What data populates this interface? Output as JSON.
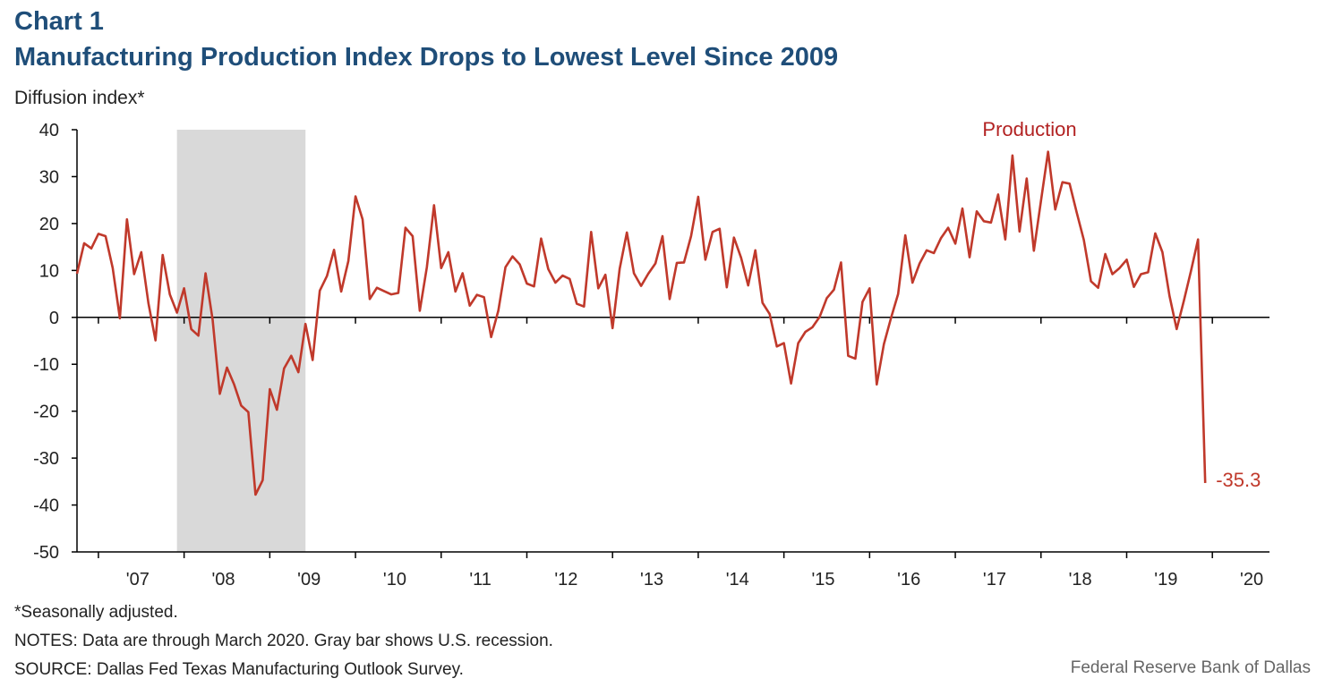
{
  "header": {
    "chart_label": "Chart 1",
    "title": "Manufacturing Production Index Drops to Lowest Level Since 2009",
    "y_unit": "Diffusion index*"
  },
  "footer": {
    "footnote": "*Seasonally adjusted.",
    "notes": "NOTES: Data are through March 2020. Gray bar shows U.S. recession.",
    "source": "SOURCE: Dallas Fed Texas Manufacturing Outlook Survey.",
    "credit": "Federal Reserve Bank of Dallas"
  },
  "chart_data": {
    "type": "line",
    "title": "Manufacturing Production Index Drops to Lowest Level Since 2009",
    "ylabel": "Diffusion index*",
    "ylim": [
      -50,
      40
    ],
    "yticks": [
      40,
      30,
      20,
      10,
      0,
      -10,
      -20,
      -30,
      -40,
      -50
    ],
    "x_range": [
      "2006-10",
      "2020-09"
    ],
    "xtick_labels": [
      "'07",
      "'08",
      "'09",
      "'10",
      "'11",
      "'12",
      "'13",
      "'14",
      "'15",
      "'16",
      "'17",
      "'18",
      "'19",
      "'20"
    ],
    "recession": {
      "start": "2007-12",
      "end": "2009-06",
      "color": "#d9d9d9"
    },
    "series": [
      {
        "name": "Production",
        "color": "#c0392b",
        "start": "2006-10",
        "end_label": "-35.3",
        "values": [
          9.3,
          15.8,
          14.7,
          17.8,
          17.3,
          10.5,
          -0.2,
          20.9,
          9.2,
          13.9,
          3.0,
          -4.9,
          13.3,
          4.9,
          1.0,
          6.2,
          -2.5,
          -3.9,
          9.4,
          -0.5,
          -16.3,
          -10.7,
          -14.3,
          -18.8,
          -20.2,
          -37.8,
          -34.7,
          -15.3,
          -19.7,
          -10.9,
          -8.2,
          -11.7,
          -1.4,
          -9.1,
          5.7,
          8.8,
          14.4,
          5.5,
          12.0,
          25.8,
          20.9,
          3.9,
          6.3,
          5.6,
          4.9,
          5.2,
          19.1,
          17.3,
          1.4,
          10.7,
          23.9,
          10.5,
          13.9,
          5.5,
          9.4,
          2.5,
          4.8,
          4.3,
          -4.2,
          1.4,
          10.7,
          13.0,
          11.3,
          7.2,
          6.6,
          16.8,
          10.3,
          7.4,
          8.9,
          8.2,
          2.9,
          2.3,
          18.2,
          6.2,
          9.1,
          -2.3,
          10.4,
          18.1,
          9.4,
          6.7,
          9.3,
          11.5,
          17.3,
          3.9,
          11.6,
          11.7,
          17.3,
          25.7,
          12.3,
          18.2,
          18.9,
          6.4,
          17.0,
          12.7,
          6.8,
          14.3,
          3.1,
          0.7,
          -6.2,
          -5.5,
          -14.1,
          -5.5,
          -3.1,
          -2.1,
          0.1,
          4.1,
          5.9,
          11.7,
          -8.2,
          -8.8,
          3.3,
          6.2,
          -14.3,
          -5.7,
          -0.1,
          5.0,
          17.5,
          7.4,
          11.5,
          14.3,
          13.7,
          16.9,
          19.1,
          15.7,
          23.2,
          12.8,
          22.6,
          20.5,
          20.2,
          26.2,
          16.6,
          34.5,
          18.3,
          29.6,
          14.2,
          24.9,
          35.3,
          23.0,
          28.8,
          28.5,
          22.4,
          16.5,
          7.7,
          6.3,
          13.5,
          9.2,
          10.5,
          12.3,
          6.5,
          9.2,
          9.6,
          17.9,
          13.9,
          4.6,
          -2.5,
          3.5,
          9.9,
          16.6,
          -35.3
        ]
      }
    ]
  }
}
